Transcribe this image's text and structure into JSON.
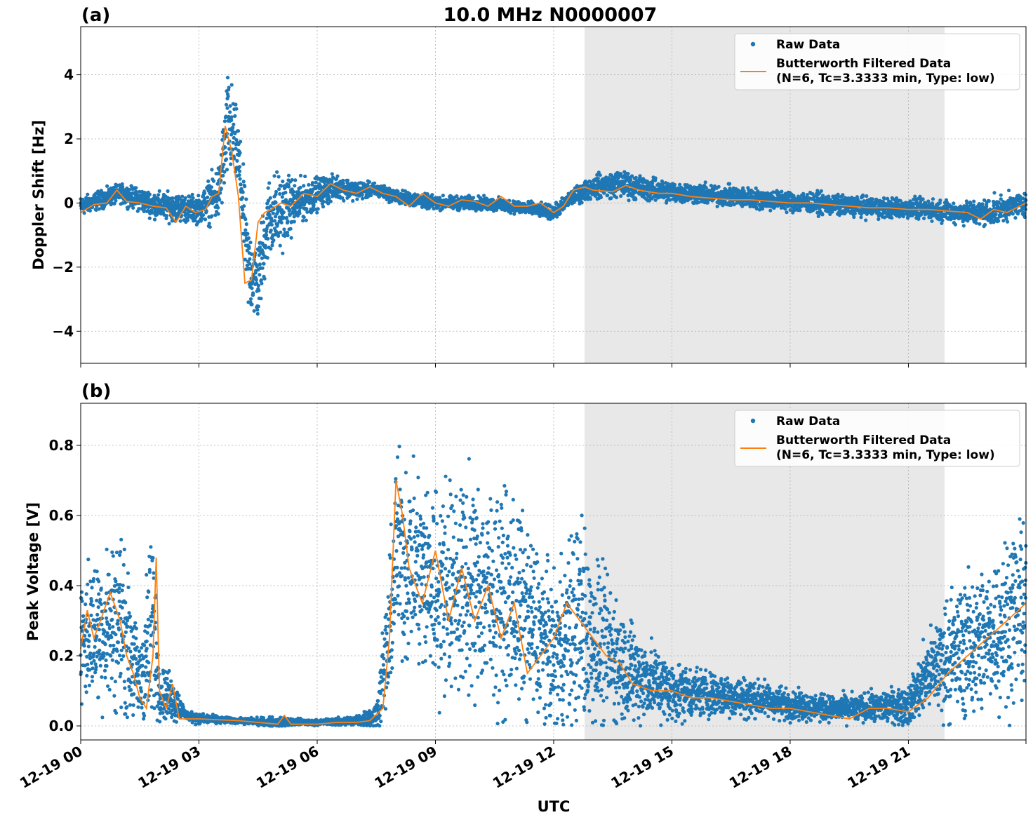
{
  "figure_title": "10.0 MHz N0000007",
  "xlabel": "UTC",
  "colors": {
    "raw": "#1f77b4",
    "filtered": "#ff7f0e",
    "shade": "#e8e8e8",
    "grid": "#b0b0b0"
  },
  "x_tick_labels": [
    "12-19 00",
    "12-19 03",
    "12-19 06",
    "12-19 09",
    "12-19 12",
    "12-19 15",
    "12-19 18",
    "12-19 21"
  ],
  "chart_data": [
    {
      "type": "scatter",
      "panel_label": "(a)",
      "ylabel": "Doppler Shift [Hz]",
      "xlim": [
        "12-19 00:00",
        "12-19 23:59"
      ],
      "ylim": [
        -5.0,
        5.5
      ],
      "y_ticks": [
        -4,
        -2,
        0,
        2,
        4
      ],
      "y_tick_labels": [
        "−4",
        "−2",
        "0",
        "2",
        "4"
      ],
      "shaded_region": [
        "12-19 12:47",
        "12-19 21:55"
      ],
      "grid": true,
      "legend": {
        "placement": "top-right",
        "raw_label": "Raw Data",
        "filtered_label_line1": "Butterworth Filtered Data",
        "filtered_label_line2": "(N=6, Tc=3.3333 min, Type: low)"
      },
      "series": [
        {
          "name": "Butterworth Filtered Data (N=6, Tc=3.3333 min, Type: low)",
          "x": [
            "12-19 00:00",
            "12-19 00:20",
            "12-19 00:40",
            "12-19 00:55",
            "12-19 01:10",
            "12-19 01:30",
            "12-19 01:50",
            "12-19 02:10",
            "12-19 02:25",
            "12-19 02:40",
            "12-19 02:55",
            "12-19 03:10",
            "12-19 03:20",
            "12-19 03:30",
            "12-19 03:40",
            "12-19 03:50",
            "12-19 04:00",
            "12-19 04:10",
            "12-19 04:20",
            "12-19 04:30",
            "12-19 04:40",
            "12-19 04:50",
            "12-19 05:05",
            "12-19 05:20",
            "12-19 05:40",
            "12-19 06:00",
            "12-19 06:20",
            "12-19 06:40",
            "12-19 07:00",
            "12-19 07:20",
            "12-19 07:40",
            "12-19 08:00",
            "12-19 08:20",
            "12-19 08:40",
            "12-19 09:00",
            "12-19 09:20",
            "12-19 09:40",
            "12-19 10:00",
            "12-19 10:20",
            "12-19 10:40",
            "12-19 11:00",
            "12-19 11:20",
            "12-19 11:40",
            "12-19 12:00",
            "12-19 12:15",
            "12-19 12:30",
            "12-19 12:47",
            "12-19 13:00",
            "12-19 13:30",
            "12-19 13:50",
            "12-19 14:10",
            "12-19 14:40",
            "12-19 15:00",
            "12-19 15:30",
            "12-19 16:00",
            "12-19 16:30",
            "12-19 17:00",
            "12-19 17:30",
            "12-19 18:00",
            "12-19 18:30",
            "12-19 19:00",
            "12-19 19:30",
            "12-19 20:00",
            "12-19 20:30",
            "12-19 21:00",
            "12-19 21:30",
            "12-19 22:00",
            "12-19 22:30",
            "12-19 22:50",
            "12-19 23:10",
            "12-19 23:30",
            "12-19 23:59"
          ],
          "y": [
            -0.3,
            -0.05,
            0.0,
            0.4,
            0.05,
            0.0,
            -0.1,
            -0.15,
            -0.6,
            -0.1,
            -0.3,
            -0.2,
            0.2,
            0.3,
            2.4,
            1.6,
            0.2,
            -2.5,
            -2.4,
            -0.6,
            -0.3,
            -0.2,
            0.0,
            -0.1,
            0.3,
            0.2,
            0.6,
            0.4,
            0.3,
            0.5,
            0.3,
            0.2,
            -0.1,
            0.3,
            0.0,
            -0.1,
            0.1,
            0.05,
            -0.1,
            0.2,
            -0.1,
            -0.1,
            0.0,
            -0.3,
            -0.1,
            0.4,
            0.5,
            0.4,
            0.35,
            0.55,
            0.4,
            0.3,
            0.3,
            0.2,
            0.15,
            0.1,
            0.1,
            0.05,
            0.0,
            0.0,
            -0.05,
            -0.1,
            -0.15,
            -0.15,
            -0.2,
            -0.2,
            -0.25,
            -0.3,
            -0.5,
            -0.2,
            -0.3,
            0.0
          ]
        },
        {
          "name": "Raw Data",
          "x": [
            "12-19 00:00",
            "12-19 01:00",
            "12-19 02:00",
            "12-19 03:00",
            "12-19 03:30",
            "12-19 03:45",
            "12-19 04:00",
            "12-19 04:15",
            "12-19 04:30",
            "12-19 04:45",
            "12-19 05:00",
            "12-19 05:30",
            "12-19 06:00",
            "12-19 06:30",
            "12-19 07:00",
            "12-19 07:30",
            "12-19 08:00",
            "12-19 09:00",
            "12-19 10:00",
            "12-19 11:00",
            "12-19 12:00",
            "12-19 12:30",
            "12-19 13:00",
            "12-19 13:40",
            "12-19 14:30",
            "12-19 15:30",
            "12-19 16:30",
            "12-19 17:30",
            "12-19 18:30",
            "12-19 19:30",
            "12-19 20:30",
            "12-19 21:30",
            "12-19 22:30",
            "12-19 23:00",
            "12-19 23:59"
          ],
          "y_center": [
            -0.1,
            0.3,
            -0.1,
            -0.2,
            0.3,
            2.5,
            1.5,
            -2.0,
            -2.5,
            -0.5,
            -0.3,
            0.0,
            0.3,
            0.5,
            0.4,
            0.4,
            0.2,
            0.0,
            0.0,
            -0.1,
            -0.3,
            0.2,
            0.5,
            0.6,
            0.4,
            0.3,
            0.2,
            0.1,
            0.0,
            -0.1,
            -0.15,
            -0.2,
            -0.3,
            -0.3,
            0.0
          ],
          "y_spread": [
            0.4,
            0.4,
            0.6,
            0.6,
            1.3,
            2.4,
            1.5,
            2.0,
            1.8,
            1.8,
            1.8,
            1.0,
            0.7,
            0.5,
            0.4,
            0.3,
            0.3,
            0.3,
            0.3,
            0.3,
            0.3,
            0.35,
            0.5,
            0.6,
            0.5,
            0.45,
            0.45,
            0.45,
            0.45,
            0.45,
            0.45,
            0.45,
            0.5,
            0.6,
            0.5
          ]
        }
      ]
    },
    {
      "type": "scatter",
      "panel_label": "(b)",
      "ylabel": "Peak Voltage [V]",
      "xlim": [
        "12-19 00:00",
        "12-19 23:59"
      ],
      "ylim": [
        -0.04,
        0.92
      ],
      "y_ticks": [
        0.0,
        0.2,
        0.4,
        0.6,
        0.8
      ],
      "y_tick_labels": [
        "0.0",
        "0.2",
        "0.4",
        "0.6",
        "0.8"
      ],
      "shaded_region": [
        "12-19 12:47",
        "12-19 21:55"
      ],
      "grid": true,
      "legend": {
        "placement": "top-right",
        "raw_label": "Raw Data",
        "filtered_label_line1": "Butterworth Filtered Data",
        "filtered_label_line2": "(N=6, Tc=3.3333 min, Type: low)"
      },
      "series": [
        {
          "name": "Butterworth Filtered Data (N=6, Tc=3.3333 min, Type: low)",
          "x": [
            "12-19 00:00",
            "12-19 00:10",
            "12-19 00:20",
            "12-19 00:30",
            "12-19 00:45",
            "12-19 01:00",
            "12-19 01:10",
            "12-19 01:20",
            "12-19 01:30",
            "12-19 01:40",
            "12-19 01:50",
            "12-19 01:55",
            "12-19 02:00",
            "12-19 02:10",
            "12-19 02:20",
            "12-19 02:30",
            "12-19 03:00",
            "12-19 04:00",
            "12-19 04:30",
            "12-19 05:00",
            "12-19 05:10",
            "12-19 05:20",
            "12-19 06:00",
            "12-19 06:30",
            "12-19 07:00",
            "12-19 07:20",
            "12-19 07:40",
            "12-19 07:50",
            "12-19 08:00",
            "12-19 08:10",
            "12-19 08:20",
            "12-19 08:40",
            "12-19 09:00",
            "12-19 09:20",
            "12-19 09:40",
            "12-19 10:00",
            "12-19 10:20",
            "12-19 10:40",
            "12-19 11:00",
            "12-19 11:20",
            "12-19 11:40",
            "12-19 12:00",
            "12-19 12:20",
            "12-19 12:40",
            "12-19 13:00",
            "12-19 13:20",
            "12-19 13:40",
            "12-19 14:00",
            "12-19 14:30",
            "12-19 15:00",
            "12-19 15:30",
            "12-19 16:00",
            "12-19 16:30",
            "12-19 17:00",
            "12-19 17:30",
            "12-19 18:00",
            "12-19 18:30",
            "12-19 19:00",
            "12-19 19:30",
            "12-19 20:00",
            "12-19 20:30",
            "12-19 21:00",
            "12-19 21:30",
            "12-19 22:00",
            "12-19 22:30",
            "12-19 23:00",
            "12-19 23:30",
            "12-19 23:59"
          ],
          "y": [
            0.22,
            0.33,
            0.25,
            0.3,
            0.38,
            0.3,
            0.2,
            0.15,
            0.08,
            0.05,
            0.2,
            0.48,
            0.1,
            0.05,
            0.12,
            0.02,
            0.02,
            0.015,
            0.01,
            0.005,
            0.03,
            0.005,
            0.005,
            0.01,
            0.01,
            0.015,
            0.05,
            0.25,
            0.7,
            0.6,
            0.45,
            0.35,
            0.5,
            0.3,
            0.45,
            0.3,
            0.4,
            0.25,
            0.35,
            0.15,
            0.2,
            0.25,
            0.35,
            0.3,
            0.25,
            0.2,
            0.18,
            0.12,
            0.1,
            0.1,
            0.08,
            0.08,
            0.07,
            0.06,
            0.05,
            0.05,
            0.04,
            0.03,
            0.02,
            0.05,
            0.05,
            0.04,
            0.08,
            0.15,
            0.2,
            0.25,
            0.3,
            0.35
          ]
        },
        {
          "name": "Raw Data",
          "x": [
            "12-19 00:00",
            "12-19 00:30",
            "12-19 01:00",
            "12-19 01:30",
            "12-19 01:50",
            "12-19 02:00",
            "12-19 02:20",
            "12-19 02:40",
            "12-19 03:00",
            "12-19 04:00",
            "12-19 05:00",
            "12-19 06:00",
            "12-19 07:00",
            "12-19 07:30",
            "12-19 07:50",
            "12-19 08:00",
            "12-19 09:00",
            "12-19 10:00",
            "12-19 11:00",
            "12-19 12:00",
            "12-19 12:40",
            "12-19 13:00",
            "12-19 14:00",
            "12-19 15:00",
            "12-19 16:00",
            "12-19 17:00",
            "12-19 18:00",
            "12-19 19:00",
            "12-19 20:00",
            "12-19 21:00",
            "12-19 21:30",
            "12-19 22:00",
            "12-19 23:00",
            "12-19 23:59"
          ],
          "y_center": [
            0.25,
            0.28,
            0.3,
            0.12,
            0.3,
            0.1,
            0.08,
            0.03,
            0.02,
            0.015,
            0.01,
            0.01,
            0.015,
            0.03,
            0.25,
            0.5,
            0.4,
            0.4,
            0.35,
            0.2,
            0.3,
            0.25,
            0.15,
            0.1,
            0.09,
            0.08,
            0.06,
            0.05,
            0.05,
            0.06,
            0.15,
            0.2,
            0.25,
            0.35
          ],
          "y_spread": [
            0.25,
            0.3,
            0.35,
            0.15,
            0.45,
            0.1,
            0.1,
            0.02,
            0.02,
            0.01,
            0.02,
            0.01,
            0.02,
            0.05,
            0.3,
            0.38,
            0.42,
            0.42,
            0.42,
            0.3,
            0.45,
            0.35,
            0.2,
            0.12,
            0.09,
            0.08,
            0.06,
            0.05,
            0.06,
            0.08,
            0.15,
            0.25,
            0.3,
            0.35
          ]
        }
      ]
    }
  ]
}
